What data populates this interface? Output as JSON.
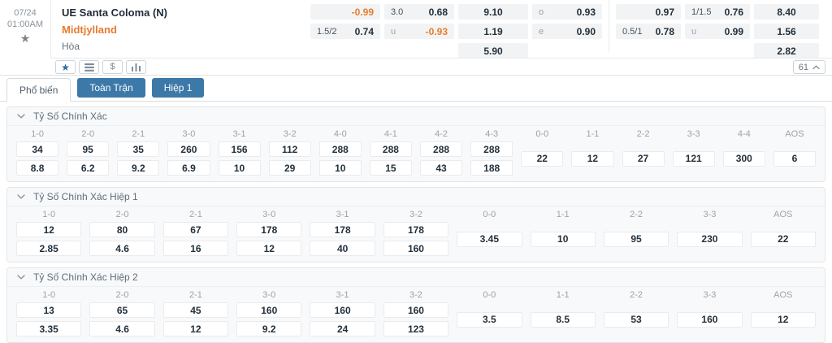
{
  "colors": {
    "accent_blue": "#3c79a8",
    "away_orange": "#e87a2f",
    "negative_odds": "#e87e2e"
  },
  "match": {
    "date": "07/24",
    "time": "01:00AM",
    "home": "UE Santa Coloma (N)",
    "away": "Midtjylland",
    "draw_label": "Hòa"
  },
  "markets": {
    "count": "61"
  },
  "glyphs": {
    "star": "★",
    "dollar": "$"
  },
  "icons": [
    "favorite-star-icon",
    "bet-list-icon",
    "dollar-icon",
    "bar-chart-icon",
    "chevron-up-icon",
    "chevron-down-icon"
  ],
  "tabs": [
    {
      "label": "Phổ biến",
      "active": true
    },
    {
      "label": "Toàn Trận",
      "active": false
    },
    {
      "label": "Hiệp 1",
      "active": false
    }
  ],
  "top_odds": {
    "groups": [
      {
        "name": "full-time",
        "columns": [
          {
            "name": "handicap",
            "rows": [
              {
                "label": "",
                "value": "-0.99"
              },
              {
                "label": "1.5/2",
                "value": "0.74"
              }
            ]
          },
          {
            "name": "over-under",
            "rows": [
              {
                "label": "3.0",
                "value": "0.68"
              },
              {
                "label": "u",
                "value": "-0.93"
              }
            ]
          },
          {
            "name": "1x2",
            "rows": [
              {
                "value": "9.10"
              },
              {
                "value": "1.19"
              },
              {
                "value": "5.90"
              }
            ]
          },
          {
            "name": "odd-even",
            "rows": [
              {
                "label": "o",
                "value": "0.93"
              },
              {
                "label": "e",
                "value": "0.90"
              }
            ]
          }
        ]
      },
      {
        "name": "first-half",
        "columns": [
          {
            "name": "handicap-h1",
            "rows": [
              {
                "label": "",
                "value": "0.97"
              },
              {
                "label": "0.5/1",
                "value": "0.78"
              }
            ]
          },
          {
            "name": "over-under-h1",
            "rows": [
              {
                "label": "1/1.5",
                "value": "0.76"
              },
              {
                "label": "u",
                "value": "0.99"
              }
            ]
          },
          {
            "name": "1x2-h1",
            "rows": [
              {
                "value": "8.40"
              },
              {
                "value": "1.56"
              },
              {
                "value": "2.82"
              }
            ]
          }
        ]
      }
    ]
  },
  "sections": [
    {
      "title": "Tỷ Số Chính Xác",
      "columns": [
        {
          "score": "1-0",
          "odds": [
            "34",
            "8.8"
          ]
        },
        {
          "score": "2-0",
          "odds": [
            "95",
            "6.2"
          ]
        },
        {
          "score": "2-1",
          "odds": [
            "35",
            "9.2"
          ]
        },
        {
          "score": "3-0",
          "odds": [
            "260",
            "6.9"
          ]
        },
        {
          "score": "3-1",
          "odds": [
            "156",
            "10"
          ]
        },
        {
          "score": "3-2",
          "odds": [
            "112",
            "29"
          ]
        },
        {
          "score": "4-0",
          "odds": [
            "288",
            "10"
          ]
        },
        {
          "score": "4-1",
          "odds": [
            "288",
            "15"
          ]
        },
        {
          "score": "4-2",
          "odds": [
            "288",
            "43"
          ]
        },
        {
          "score": "4-3",
          "odds": [
            "288",
            "188"
          ]
        },
        {
          "score": "0-0",
          "odds": [
            "22"
          ]
        },
        {
          "score": "1-1",
          "odds": [
            "12"
          ]
        },
        {
          "score": "2-2",
          "odds": [
            "27"
          ]
        },
        {
          "score": "3-3",
          "odds": [
            "121"
          ]
        },
        {
          "score": "4-4",
          "odds": [
            "300"
          ]
        },
        {
          "score": "AOS",
          "odds": [
            "6"
          ]
        }
      ]
    },
    {
      "title": "Tỷ Số Chính Xác Hiệp 1",
      "columns": [
        {
          "score": "1-0",
          "odds": [
            "12",
            "2.85"
          ]
        },
        {
          "score": "2-0",
          "odds": [
            "80",
            "4.6"
          ]
        },
        {
          "score": "2-1",
          "odds": [
            "67",
            "16"
          ]
        },
        {
          "score": "3-0",
          "odds": [
            "178",
            "12"
          ]
        },
        {
          "score": "3-1",
          "odds": [
            "178",
            "40"
          ]
        },
        {
          "score": "3-2",
          "odds": [
            "178",
            "160"
          ]
        },
        {
          "score": "0-0",
          "odds": [
            "3.45"
          ]
        },
        {
          "score": "1-1",
          "odds": [
            "10"
          ]
        },
        {
          "score": "2-2",
          "odds": [
            "95"
          ]
        },
        {
          "score": "3-3",
          "odds": [
            "230"
          ]
        },
        {
          "score": "AOS",
          "odds": [
            "22"
          ]
        }
      ]
    },
    {
      "title": "Tỷ Số Chính Xác Hiệp 2",
      "columns": [
        {
          "score": "1-0",
          "odds": [
            "13",
            "3.35"
          ]
        },
        {
          "score": "2-0",
          "odds": [
            "65",
            "4.6"
          ]
        },
        {
          "score": "2-1",
          "odds": [
            "45",
            "12"
          ]
        },
        {
          "score": "3-0",
          "odds": [
            "160",
            "9.2"
          ]
        },
        {
          "score": "3-1",
          "odds": [
            "160",
            "24"
          ]
        },
        {
          "score": "3-2",
          "odds": [
            "160",
            "123"
          ]
        },
        {
          "score": "0-0",
          "odds": [
            "3.5"
          ]
        },
        {
          "score": "1-1",
          "odds": [
            "8.5"
          ]
        },
        {
          "score": "2-2",
          "odds": [
            "53"
          ]
        },
        {
          "score": "3-3",
          "odds": [
            "160"
          ]
        },
        {
          "score": "AOS",
          "odds": [
            "12"
          ]
        }
      ]
    }
  ]
}
